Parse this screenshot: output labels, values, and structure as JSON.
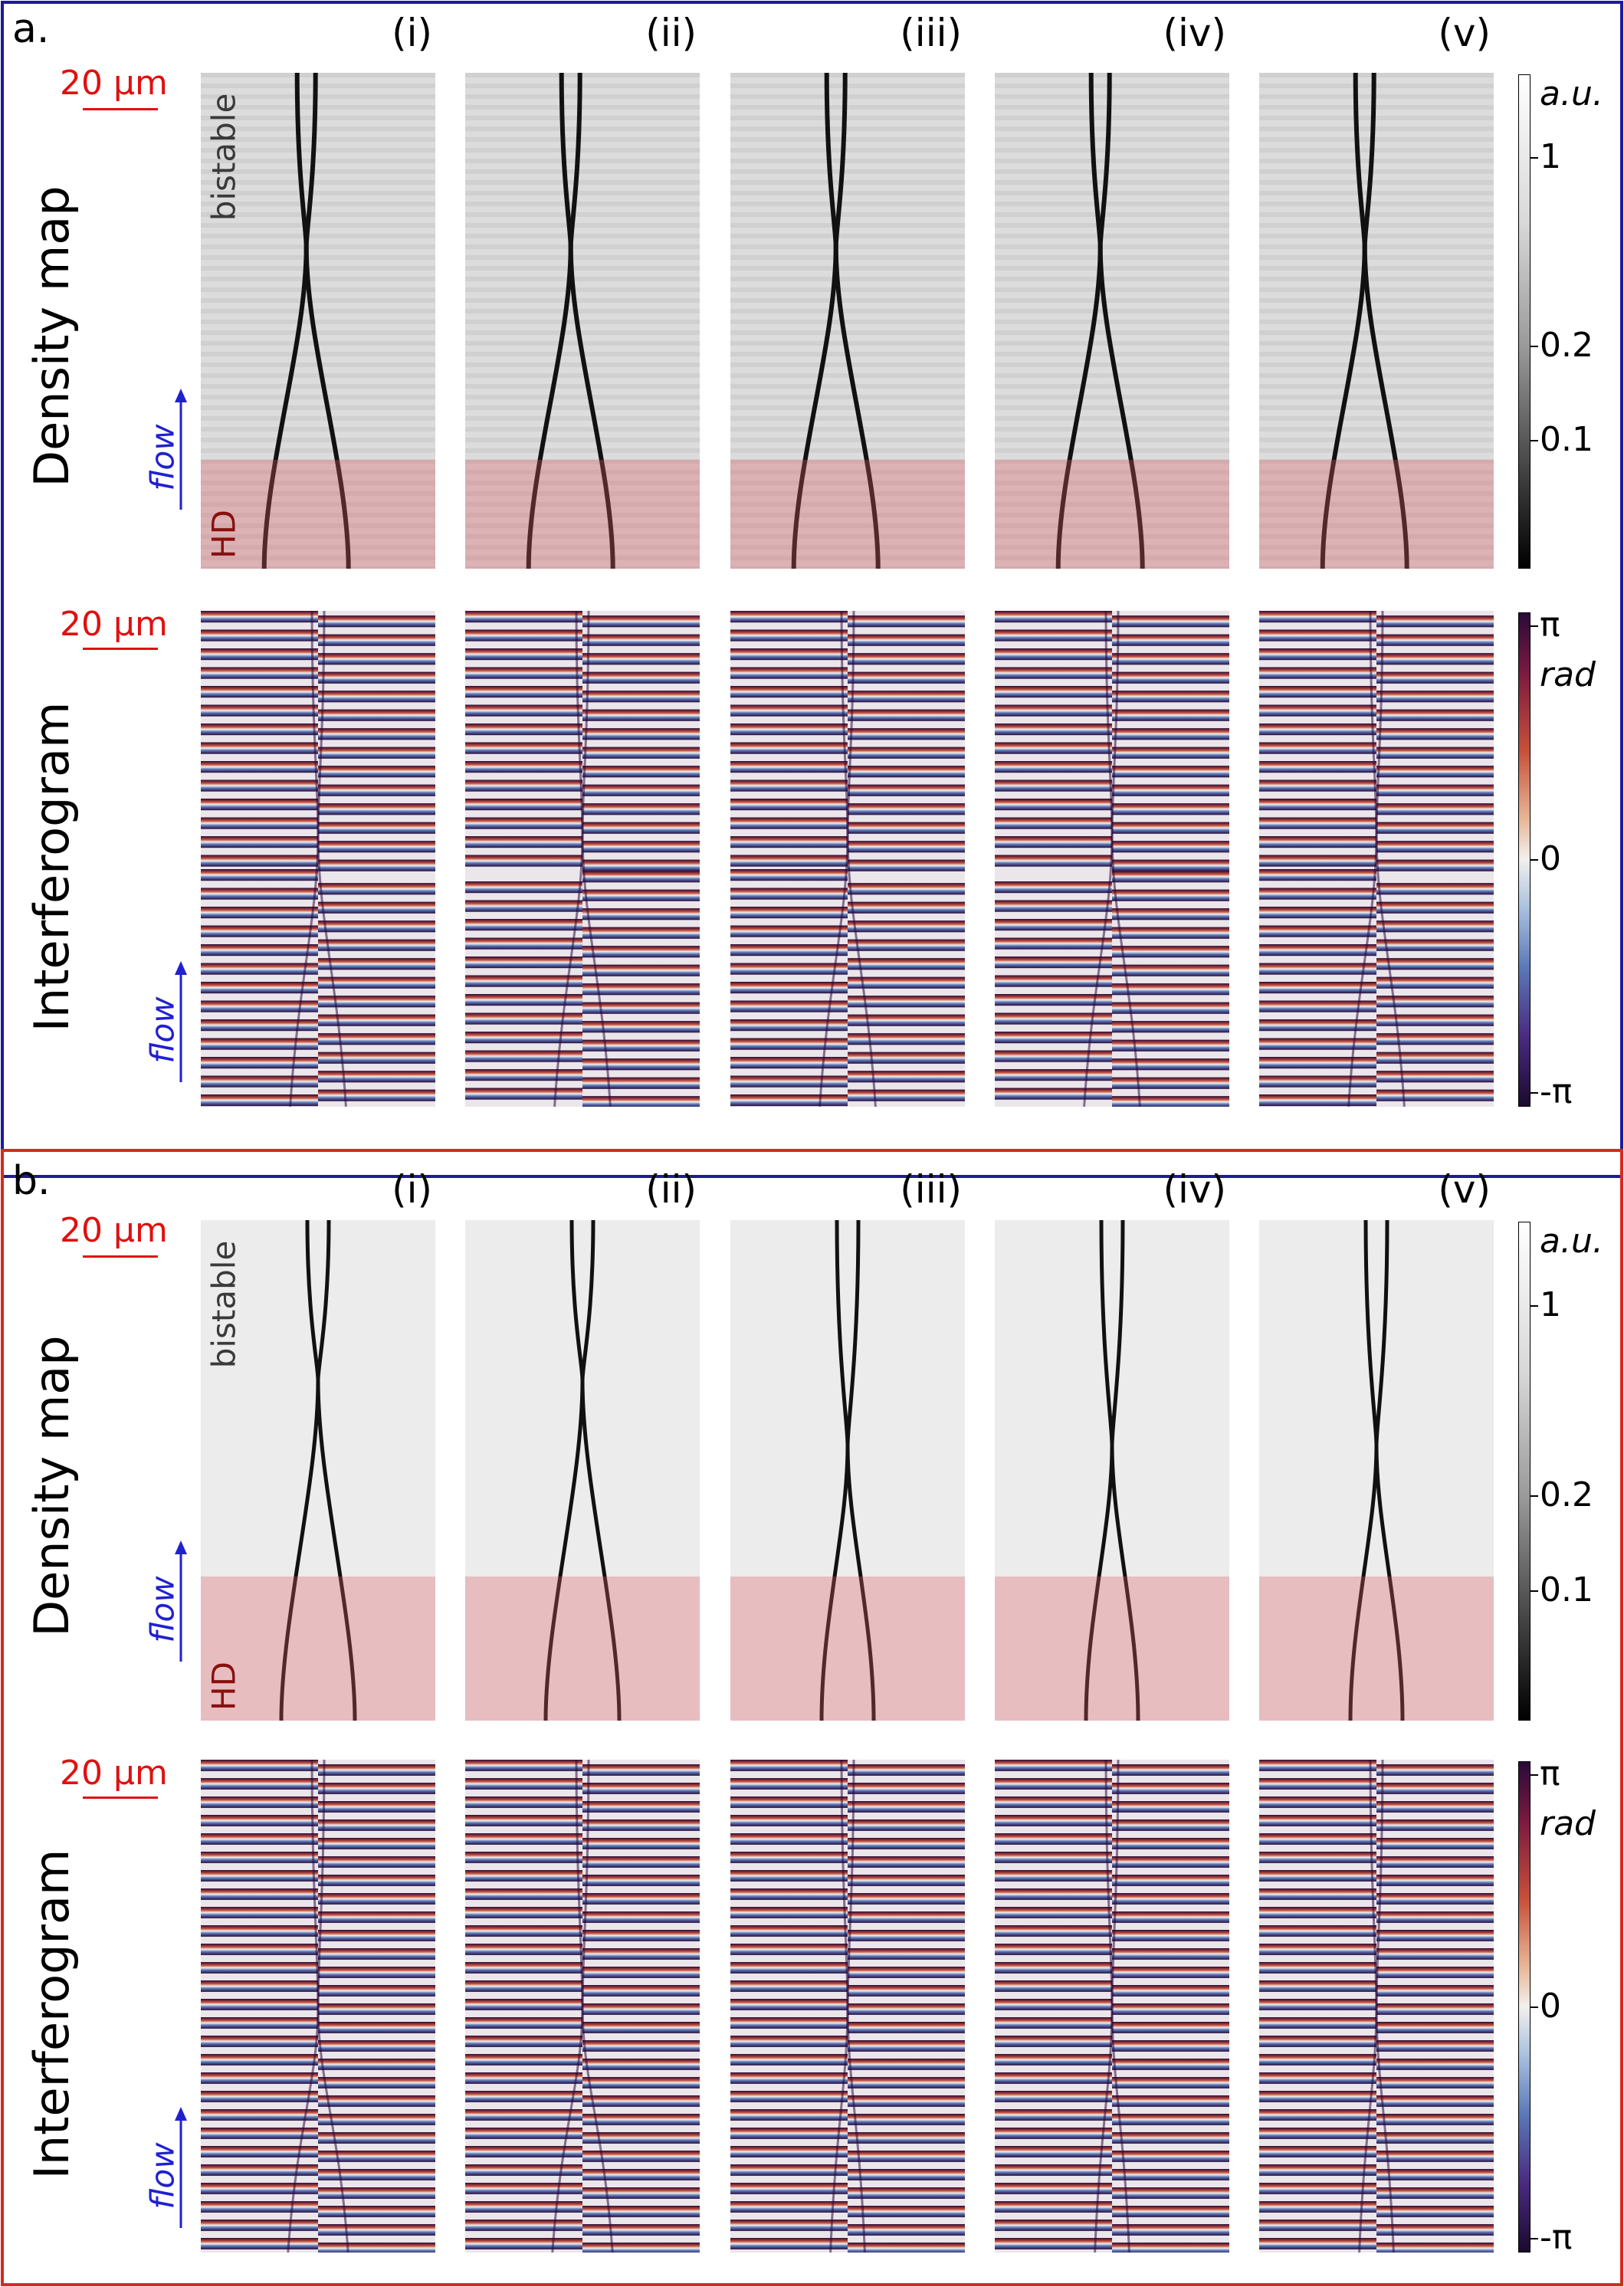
{
  "panels": [
    {
      "label": "a.",
      "columns": [
        "(i)",
        "(ii)",
        "(iii)",
        "(iv)",
        "(v)"
      ],
      "density_row_label": "Density map",
      "interferogram_row_label": "Interferogram",
      "scale_bar": "20 µm",
      "bistable_label": "bistable",
      "hd_label": "HD",
      "flow_label": "flow",
      "density_colorbar": {
        "unit": "a.u.",
        "ticks": [
          "1",
          "0.2",
          "0.1"
        ]
      },
      "phase_colorbar": {
        "unit": "rad",
        "ticks": [
          "π",
          "0",
          "-π"
        ]
      },
      "border_color": "#1f1a9a"
    },
    {
      "label": "b.",
      "columns": [
        "(i)",
        "(ii)",
        "(iii)",
        "(iv)",
        "(v)"
      ],
      "density_row_label": "Density map",
      "interferogram_row_label": "Interferogram",
      "scale_bar": "20 µm",
      "bistable_label": "bistable",
      "hd_label": "HD",
      "flow_label": "flow",
      "density_colorbar": {
        "unit": "a.u.",
        "ticks": [
          "1",
          "0.2",
          "0.1"
        ]
      },
      "phase_colorbar": {
        "unit": "rad",
        "ticks": [
          "π",
          "0",
          "-π"
        ]
      },
      "border_color": "#d62a20"
    }
  ],
  "colors": {
    "scale_bar": "#e01010",
    "flow": "#2020d0",
    "hd_text": "#8a0f0f",
    "hd_overlay": "#dc5a64",
    "fringe_dark": "#2a0a3a",
    "fringe_red": "#c8503a",
    "fringe_light": "#f2f0ee",
    "fringe_blue": "#5a78b8"
  }
}
